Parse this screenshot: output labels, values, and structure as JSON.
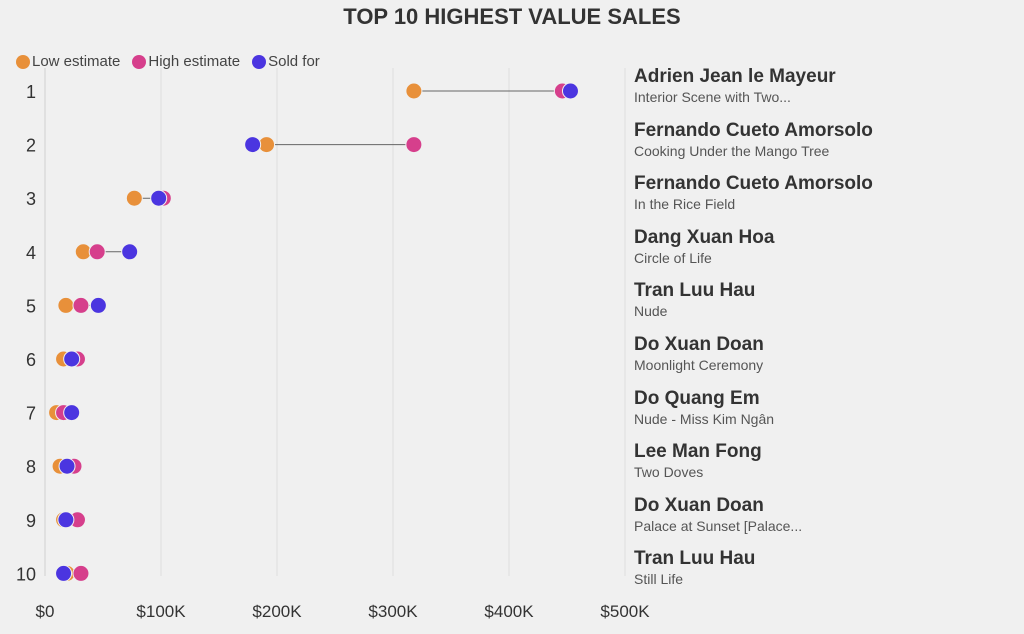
{
  "chart_data": {
    "type": "dumbbell",
    "title": "TOP 10 HIGHEST VALUE SALES",
    "legend": [
      {
        "name": "Low estimate",
        "color": "#E8903A"
      },
      {
        "name": "High estimate",
        "color": "#D63F8C"
      },
      {
        "name": "Sold for",
        "color": "#4B35E0"
      }
    ],
    "legend_position": "top-left",
    "xlim": [
      0,
      500000
    ],
    "x_ticks": [
      {
        "v": 0,
        "label": "$0"
      },
      {
        "v": 100000,
        "label": "$100K"
      },
      {
        "v": 200000,
        "label": "$200K"
      },
      {
        "v": 300000,
        "label": "$300K"
      },
      {
        "v": 400000,
        "label": "$400K"
      },
      {
        "v": 500000,
        "label": "$500K"
      }
    ],
    "rows": [
      {
        "rank": "1",
        "artist": "Adrien Jean le Mayeur",
        "title": "Interior Scene with Two...",
        "low": 318000,
        "high": 446000,
        "sold": 453000
      },
      {
        "rank": "2",
        "artist": "Fernando Cueto Amorsolo",
        "title": "Cooking Under the Mango Tree",
        "low": 191000,
        "high": 318000,
        "sold": 179000
      },
      {
        "rank": "3",
        "artist": "Fernando Cueto Amorsolo",
        "title": "In the Rice Field",
        "low": 77000,
        "high": 102000,
        "sold": 98000
      },
      {
        "rank": "4",
        "artist": "Dang Xuan Hoa",
        "title": "Circle of Life",
        "low": 33000,
        "high": 45000,
        "sold": 73000
      },
      {
        "rank": "5",
        "artist": "Tran Luu Hau",
        "title": "Nude",
        "low": 18000,
        "high": 31000,
        "sold": 46000
      },
      {
        "rank": "6",
        "artist": "Do Xuan Doan",
        "title": "Moonlight Ceremony",
        "low": 16000,
        "high": 28000,
        "sold": 23000
      },
      {
        "rank": "7",
        "artist": "Do Quang Em",
        "title": "Nude - Miss Kim Ngân",
        "low": 10000,
        "high": 16000,
        "sold": 23000
      },
      {
        "rank": "8",
        "artist": "Lee Man Fong",
        "title": "Two Doves",
        "low": 13000,
        "high": 25000,
        "sold": 19000
      },
      {
        "rank": "9",
        "artist": "Do Xuan Doan",
        "title": "Palace at Sunset [Palace...",
        "low": 16000,
        "high": 28000,
        "sold": 18000
      },
      {
        "rank": "10",
        "artist": "Tran Luu Hau",
        "title": "Still Life",
        "low": 19000,
        "high": 31000,
        "sold": 16000
      }
    ]
  }
}
